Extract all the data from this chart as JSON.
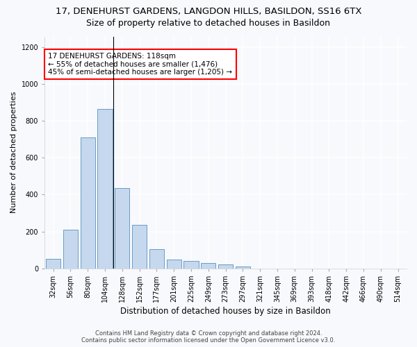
{
  "title": "17, DENEHURST GARDENS, LANGDON HILLS, BASILDON, SS16 6TX",
  "subtitle": "Size of property relative to detached houses in Basildon",
  "xlabel": "Distribution of detached houses by size in Basildon",
  "ylabel": "Number of detached properties",
  "bar_color": "#c5d8ee",
  "bar_edge_color": "#5a8fc0",
  "categories": [
    "32sqm",
    "56sqm",
    "80sqm",
    "104sqm",
    "128sqm",
    "152sqm",
    "177sqm",
    "201sqm",
    "225sqm",
    "249sqm",
    "273sqm",
    "297sqm",
    "321sqm",
    "345sqm",
    "369sqm",
    "393sqm",
    "418sqm",
    "442sqm",
    "466sqm",
    "490sqm",
    "514sqm"
  ],
  "values": [
    50,
    210,
    710,
    865,
    435,
    235,
    105,
    48,
    38,
    28,
    20,
    10,
    0,
    0,
    0,
    0,
    0,
    0,
    0,
    0,
    0
  ],
  "ylim": [
    0,
    1260
  ],
  "yticks": [
    0,
    200,
    400,
    600,
    800,
    1000,
    1200
  ],
  "annotation_text": "17 DENEHURST GARDENS: 118sqm\n← 55% of detached houses are smaller (1,476)\n45% of semi-detached houses are larger (1,205) →",
  "vline_x_index": 3,
  "footer_line1": "Contains HM Land Registry data © Crown copyright and database right 2024.",
  "footer_line2": "Contains public sector information licensed under the Open Government Licence v3.0.",
  "background_color": "#f7f9fc",
  "plot_background": "#f7f9fc",
  "grid_color": "#ffffff",
  "title_fontsize": 9.5,
  "subtitle_fontsize": 9,
  "xlabel_fontsize": 8.5,
  "ylabel_fontsize": 8,
  "tick_fontsize": 7,
  "annotation_fontsize": 7.5,
  "footer_fontsize": 6
}
